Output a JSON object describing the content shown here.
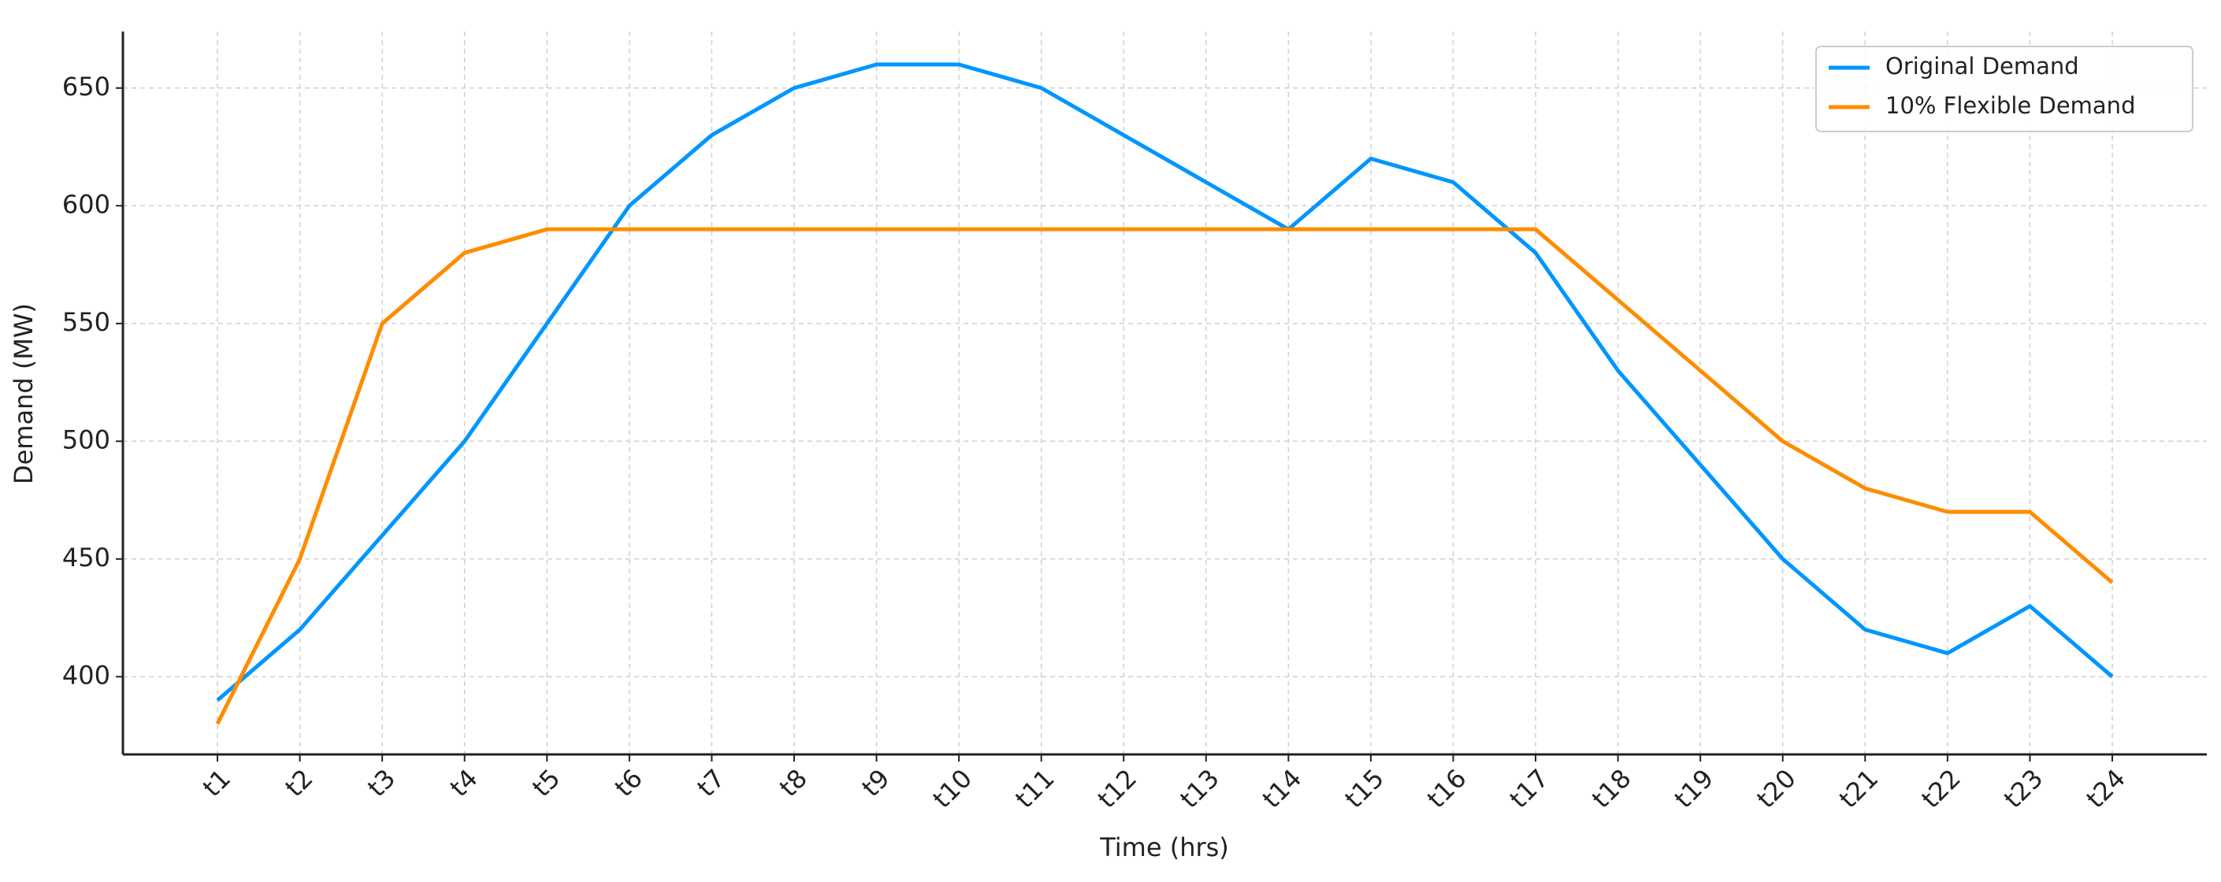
{
  "chart_data": {
    "type": "line",
    "x_label": "Time (hrs)",
    "y_label": "Demand (MW)",
    "categories": [
      "t1",
      "t2",
      "t3",
      "t4",
      "t5",
      "t6",
      "t7",
      "t8",
      "t9",
      "t10",
      "t11",
      "t12",
      "t13",
      "t14",
      "t15",
      "t16",
      "t17",
      "t18",
      "t19",
      "t20",
      "t21",
      "t22",
      "t23",
      "t24"
    ],
    "series": [
      {
        "name": "Original Demand",
        "color": "#0096ff",
        "values": [
          390,
          420,
          460,
          500,
          550,
          600,
          630,
          650,
          660,
          660,
          650,
          630,
          610,
          590,
          620,
          610,
          580,
          530,
          490,
          450,
          420,
          410,
          430,
          400
        ]
      },
      {
        "name": "10% Flexible Demand",
        "color": "#ff8c00",
        "values": [
          380,
          450,
          550,
          580,
          590,
          590,
          590,
          590,
          590,
          590,
          590,
          590,
          590,
          590,
          590,
          590,
          590,
          560,
          530,
          500,
          480,
          470,
          470,
          440
        ]
      }
    ],
    "ylim": [
      367,
      674
    ],
    "yticks": [
      400,
      450,
      500,
      550,
      600,
      650
    ],
    "grid": true,
    "legend": "upper right"
  }
}
